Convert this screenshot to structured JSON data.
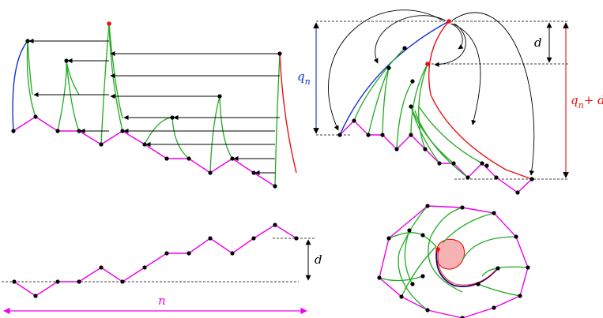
{
  "labels": {
    "qn": "q",
    "qn_sub": "n",
    "qnd": "q",
    "qnd_sub": "n",
    "qnd_tail": "+ d",
    "d_top": "d",
    "d_bottom": "d",
    "n": "n"
  },
  "colors": {
    "magenta": "#ee00ee",
    "green": "#22aa22",
    "blue": "#1133cc",
    "red": "#ee1111",
    "black": "#000000",
    "disk_fill": "#f7b3b3",
    "navy": "#2a0077"
  }
}
